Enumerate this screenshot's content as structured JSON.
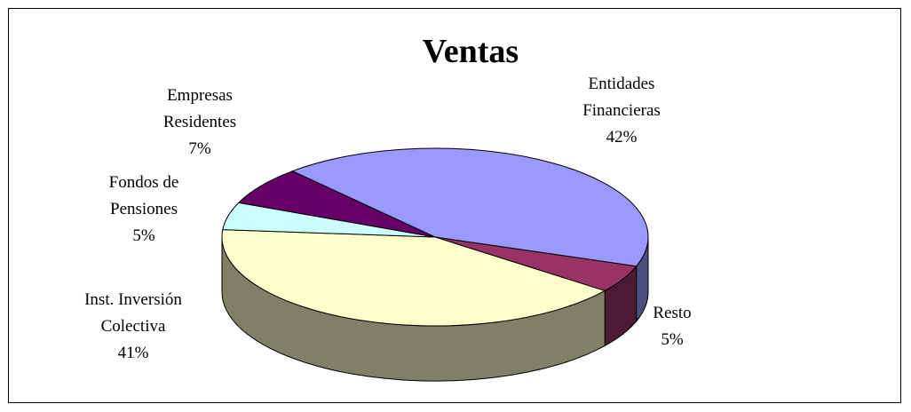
{
  "chart_data": {
    "type": "pie3d",
    "title": "Ventas",
    "categories": [
      "Entidades Financieras",
      "Resto",
      "Inst. Inversión Colectiva",
      "Fondos de Pensiones",
      "Empresas Residentes"
    ],
    "values": [
      42,
      5,
      41,
      5,
      7
    ],
    "value_labels": [
      "42%",
      "5%",
      "41%",
      "5%",
      "7%"
    ],
    "colors": [
      "#9999ff",
      "#993366",
      "#ffffcc",
      "#ccffff",
      "#660066"
    ]
  }
}
